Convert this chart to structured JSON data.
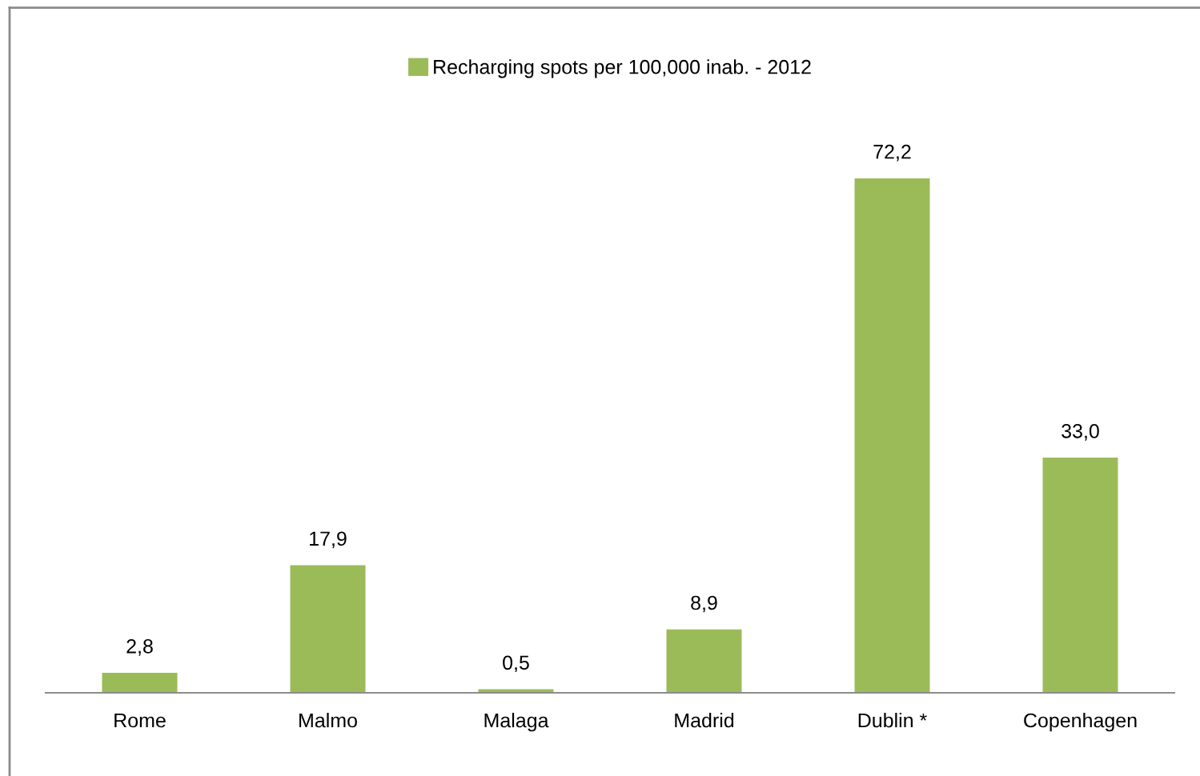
{
  "chart_data": {
    "type": "bar",
    "categories": [
      "Rome",
      "Malmo",
      "Malaga",
      "Madrid",
      "Dublin *",
      "Copenhagen"
    ],
    "series": [
      {
        "name": "Recharging spots per 100,000 inab. - 2012",
        "color": "#9bbb59",
        "values": [
          2.8,
          17.9,
          0.5,
          8.9,
          72.2,
          33.0
        ],
        "value_labels": [
          "2,8",
          "17,9",
          "0,5",
          "8,9",
          "72,2",
          "33,0"
        ]
      }
    ],
    "legend": "top",
    "grid": false
  }
}
